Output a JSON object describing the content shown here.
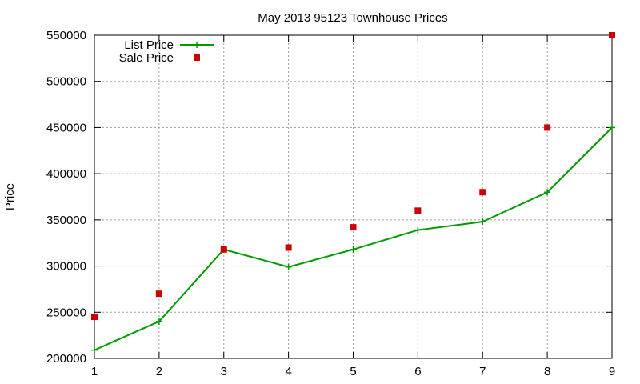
{
  "chart_data": {
    "type": "line",
    "title": "May 2013 95123 Townhouse Prices",
    "xlabel": "",
    "ylabel": "Price",
    "x": [
      1,
      2,
      3,
      4,
      5,
      6,
      7,
      8,
      9
    ],
    "xlim": [
      1,
      9
    ],
    "ylim": [
      200000,
      550000
    ],
    "xticks": [
      "1",
      "2",
      "3",
      "4",
      "5",
      "6",
      "7",
      "8",
      "9"
    ],
    "yticks": [
      "200000",
      "250000",
      "300000",
      "350000",
      "400000",
      "450000",
      "500000",
      "550000"
    ],
    "grid": true,
    "legend_position": "top-left",
    "series": [
      {
        "name": "List Price",
        "kind": "line-with-plus-markers",
        "color": "#009900",
        "values": [
          209000,
          240000,
          318000,
          299000,
          318000,
          339000,
          348000,
          380000,
          450000
        ]
      },
      {
        "name": "Sale Price",
        "kind": "square-markers",
        "color": "#cc0000",
        "values": [
          245000,
          270000,
          318000,
          320000,
          342000,
          360000,
          380000,
          450000,
          550000
        ]
      }
    ]
  }
}
